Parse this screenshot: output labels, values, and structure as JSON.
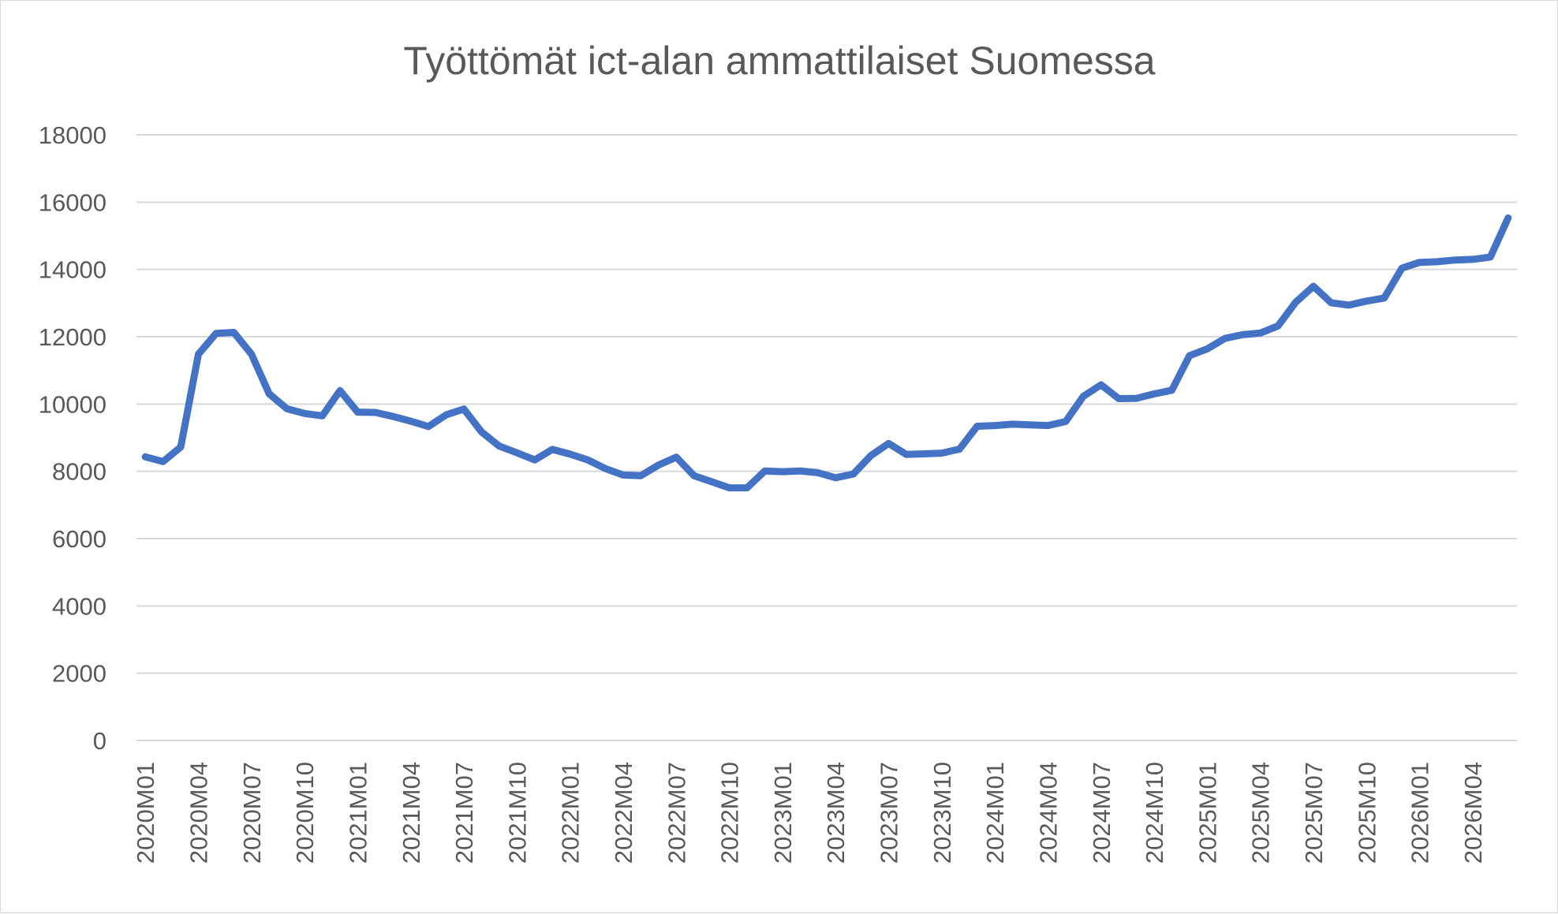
{
  "chart_data": {
    "type": "line",
    "title": "Työttömät ict-alan ammattilaiset Suomessa",
    "xlabel": "",
    "ylabel": "",
    "ylim": [
      0,
      18000
    ],
    "y_ticks": [
      0,
      2000,
      4000,
      6000,
      8000,
      10000,
      12000,
      14000,
      16000,
      18000
    ],
    "x_tick_labels": [
      "2020M01",
      "2020M04",
      "2020M07",
      "2020M10",
      "2021M01",
      "2021M04",
      "2021M07",
      "2021M10",
      "2022M01",
      "2022M04",
      "2022M07",
      "2022M10",
      "2023M01",
      "2023M04",
      "2023M07",
      "2023M10",
      "2024M01",
      "2024M04",
      "2024M07",
      "2024M10",
      "2025M01",
      "2025M04",
      "2025M07",
      "2025M10",
      "2026M01",
      "2026M04"
    ],
    "grid": true,
    "legend": "none",
    "colors": {
      "series": "#4472c4",
      "grid": "#d9d9d9",
      "text": "#595959"
    },
    "x": [
      "2020M01",
      "2020M02",
      "2020M03",
      "2020M04",
      "2020M05",
      "2020M06",
      "2020M07",
      "2020M08",
      "2020M09",
      "2020M10",
      "2020M11",
      "2020M12",
      "2021M01",
      "2021M02",
      "2021M03",
      "2021M04",
      "2021M05",
      "2021M06",
      "2021M07",
      "2021M08",
      "2021M09",
      "2021M10",
      "2021M11",
      "2021M12",
      "2022M01",
      "2022M02",
      "2022M03",
      "2022M04",
      "2022M05",
      "2022M06",
      "2022M07",
      "2022M08",
      "2022M09",
      "2022M10",
      "2022M11",
      "2022M12",
      "2023M01",
      "2023M02",
      "2023M03",
      "2023M04",
      "2023M05",
      "2023M06",
      "2023M07",
      "2023M08",
      "2023M09",
      "2023M10",
      "2023M11",
      "2023M12",
      "2024M01",
      "2024M02",
      "2024M03",
      "2024M04",
      "2024M05",
      "2024M06",
      "2024M07",
      "2024M08",
      "2024M09",
      "2024M10",
      "2024M11",
      "2024M12",
      "2025M01",
      "2025M02",
      "2025M03",
      "2025M04",
      "2025M05",
      "2025M06",
      "2025M07",
      "2025M08",
      "2025M09",
      "2025M10",
      "2025M11",
      "2025M12",
      "2026M01",
      "2026M02",
      "2026M03",
      "2026M04",
      "2026M05",
      "2026M06"
    ],
    "series": [
      {
        "values": [
          8430,
          8290,
          8720,
          11480,
          12100,
          12130,
          11480,
          10300,
          9860,
          9720,
          9650,
          10400,
          9760,
          9750,
          9630,
          9490,
          9330,
          9680,
          9850,
          9170,
          8750,
          8550,
          8340,
          8650,
          8510,
          8340,
          8080,
          7890,
          7870,
          8190,
          8420,
          7870,
          7690,
          7510,
          7510,
          8010,
          7990,
          8010,
          7960,
          7810,
          7920,
          8470,
          8830,
          8500,
          8520,
          8540,
          8660,
          9340,
          9360,
          9400,
          9380,
          9360,
          9480,
          10230,
          10570,
          10160,
          10170,
          10300,
          10410,
          11440,
          11640,
          11950,
          12060,
          12110,
          12320,
          13030,
          13500,
          13010,
          12940,
          13060,
          13150,
          14040,
          14210,
          14230,
          14280,
          14300,
          14370,
          15530
        ]
      }
    ]
  }
}
